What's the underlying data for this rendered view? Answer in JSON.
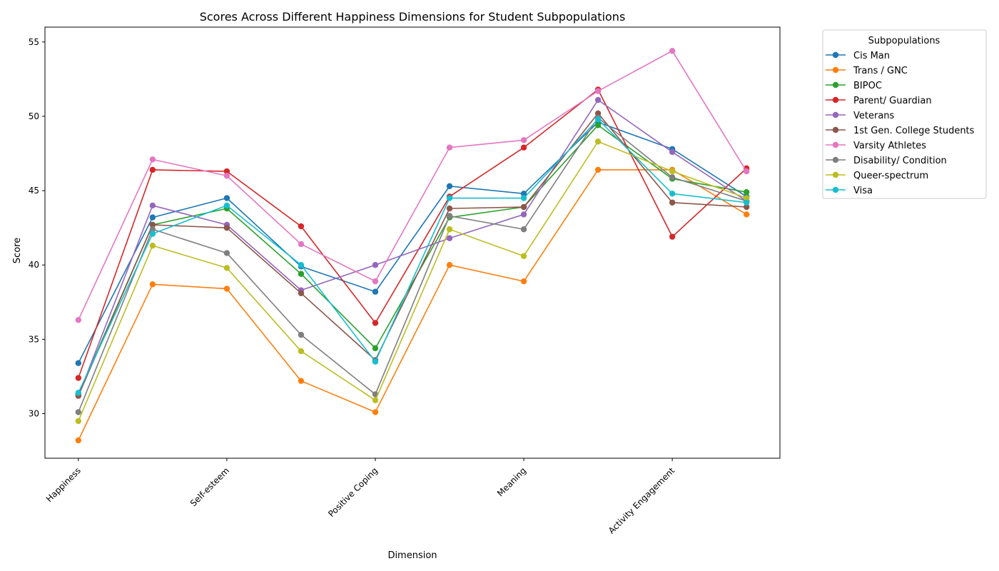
{
  "chart_data": {
    "type": "line",
    "title": "Scores Across Different Happiness Dimensions for Student Subpopulations",
    "xlabel": "Dimension",
    "ylabel": "Score",
    "tick_labels": [
      "Happiness",
      "Self-esteem",
      "Positive Coping",
      "Meaning",
      "Activity Engagement"
    ],
    "tick_positions": [
      0,
      2,
      4,
      6,
      8
    ],
    "x": [
      0,
      1,
      2,
      3,
      4,
      5,
      6,
      7,
      8,
      9
    ],
    "ylim": [
      27,
      56
    ],
    "yticks": [
      30,
      35,
      40,
      45,
      50,
      55
    ],
    "grid": false,
    "legend_title": "Subpopulations",
    "legend_placement": "outside-top-right",
    "series": [
      {
        "name": "Cis Man",
        "color": "#1f77b4",
        "values": [
          33.4,
          43.2,
          44.5,
          39.9,
          38.2,
          45.3,
          44.8,
          49.6,
          47.8,
          44.6
        ]
      },
      {
        "name": "Trans / GNC",
        "color": "#ff7f0e",
        "values": [
          28.2,
          38.7,
          38.4,
          32.2,
          30.1,
          40.0,
          38.9,
          46.4,
          46.4,
          43.4
        ]
      },
      {
        "name": "BIPOC",
        "color": "#2ca02c",
        "values": [
          31.3,
          42.7,
          43.8,
          39.4,
          34.4,
          43.2,
          43.9,
          49.4,
          45.8,
          44.9
        ]
      },
      {
        "name": "Parent/ Guardian",
        "color": "#d62728",
        "values": [
          32.4,
          46.4,
          46.3,
          42.6,
          36.1,
          44.6,
          47.9,
          51.8,
          41.9,
          46.5
        ]
      },
      {
        "name": "Veterans",
        "color": "#9467bd",
        "values": [
          31.2,
          44.0,
          42.7,
          38.3,
          40.0,
          41.8,
          43.4,
          51.1,
          47.6,
          44.3
        ]
      },
      {
        "name": "1st Gen. College Students",
        "color": "#8c564b",
        "values": [
          31.2,
          42.7,
          42.5,
          38.1,
          33.6,
          43.8,
          43.9,
          50.2,
          44.2,
          43.9
        ]
      },
      {
        "name": "Varsity Athletes",
        "color": "#e377c2",
        "values": [
          36.3,
          47.1,
          46.0,
          41.4,
          38.9,
          47.9,
          48.4,
          51.7,
          54.4,
          46.3
        ]
      },
      {
        "name": "Disability/ Condition",
        "color": "#7f7f7f",
        "values": [
          30.1,
          42.4,
          40.8,
          35.3,
          31.3,
          43.3,
          42.4,
          49.9,
          45.9,
          44.3
        ]
      },
      {
        "name": "Queer-spectrum",
        "color": "#bcbd22",
        "values": [
          29.5,
          41.3,
          39.8,
          34.2,
          30.9,
          42.4,
          40.6,
          48.3,
          46.3,
          44.5
        ]
      },
      {
        "name": "Visa",
        "color": "#17becf",
        "values": [
          31.4,
          42.1,
          44.0,
          40.0,
          33.5,
          44.5,
          44.5,
          49.8,
          44.8,
          44.2
        ]
      }
    ]
  }
}
